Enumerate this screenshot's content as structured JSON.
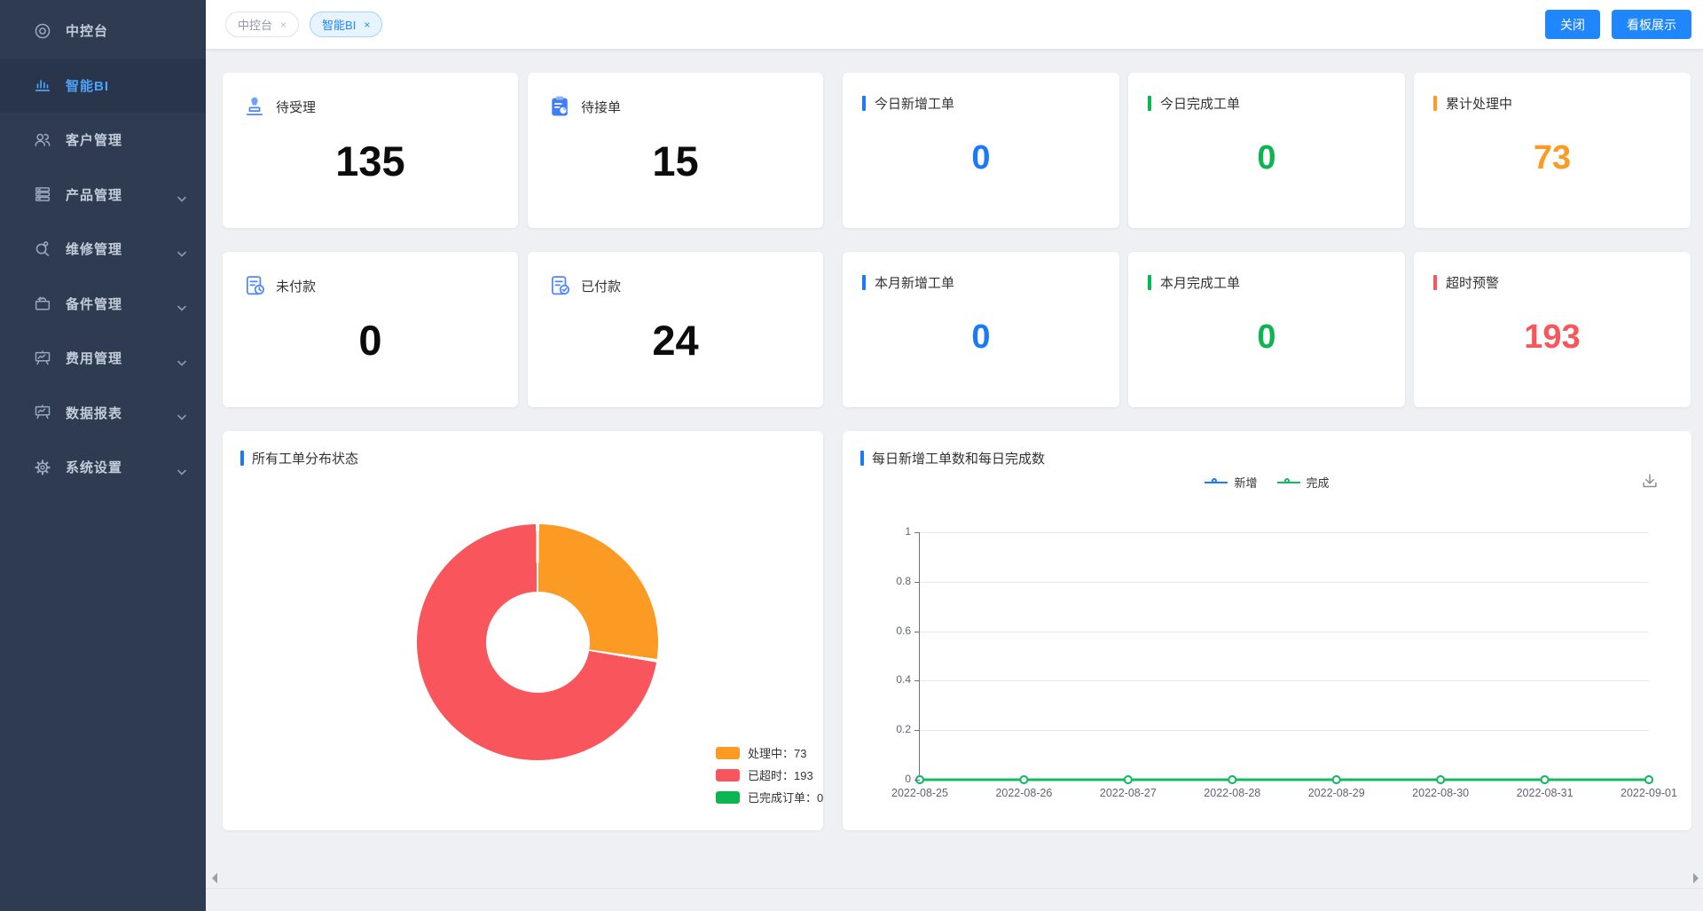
{
  "sidebar": {
    "items": [
      {
        "label": "中控台",
        "icon": "console-icon",
        "active": false,
        "has_children": false
      },
      {
        "label": "智能BI",
        "icon": "bi-chart-icon",
        "active": true,
        "has_children": false
      },
      {
        "label": "客户管理",
        "icon": "customers-icon",
        "active": false,
        "has_children": false
      },
      {
        "label": "产品管理",
        "icon": "products-icon",
        "active": false,
        "has_children": true
      },
      {
        "label": "维修管理",
        "icon": "repair-icon",
        "active": false,
        "has_children": true
      },
      {
        "label": "备件管理",
        "icon": "spare-parts-icon",
        "active": false,
        "has_children": true
      },
      {
        "label": "费用管理",
        "icon": "fees-icon",
        "active": false,
        "has_children": true
      },
      {
        "label": "数据报表",
        "icon": "reports-icon",
        "active": false,
        "has_children": true
      },
      {
        "label": "系统设置",
        "icon": "settings-icon",
        "active": false,
        "has_children": true
      }
    ]
  },
  "topbar": {
    "tabs": [
      {
        "label": "中控台",
        "close": "×",
        "active": false
      },
      {
        "label": "智能BI",
        "close": "×",
        "active": true
      }
    ],
    "buttons": {
      "close": "关闭",
      "board": "看板展示"
    }
  },
  "stats": {
    "row1": [
      {
        "title": "待受理",
        "value": "135",
        "icon": "stamp-icon"
      },
      {
        "title": "待接单",
        "value": "15",
        "icon": "clipboard-icon"
      },
      {
        "title": "今日新增工单",
        "value": "0",
        "accent": "#1a7af8"
      },
      {
        "title": "今日完成工单",
        "value": "0",
        "accent": "#0db551"
      },
      {
        "title": "累计处理中",
        "value": "73",
        "accent": "#fb9b23"
      }
    ],
    "row2": [
      {
        "title": "未付款",
        "value": "0",
        "icon": "doc-clock-icon"
      },
      {
        "title": "已付款",
        "value": "24",
        "icon": "doc-check-icon"
      },
      {
        "title": "本月新增工单",
        "value": "0",
        "accent": "#1a7af8"
      },
      {
        "title": "本月完成工单",
        "value": "0",
        "accent": "#0db551"
      },
      {
        "title": "超时预警",
        "value": "193",
        "accent": "#f8565c"
      }
    ]
  },
  "chart_data": [
    {
      "type": "pie",
      "title": "所有工单分布状态",
      "donut": true,
      "legend_position": "bottom-right",
      "series": [
        {
          "name": "处理中",
          "value": 73,
          "color": "#fb9b23"
        },
        {
          "name": "已超时",
          "value": 193,
          "color": "#f8565c"
        },
        {
          "name": "已完成订单",
          "value": 0,
          "color": "#0db551"
        }
      ]
    },
    {
      "type": "line",
      "title": "每日新增工单数和每日完成数",
      "legend_position": "top-center",
      "grid": true,
      "ylim": [
        0,
        1
      ],
      "yticks": [
        0,
        0.2,
        0.4,
        0.6,
        0.8,
        1
      ],
      "x": [
        "2022-08-25",
        "2022-08-26",
        "2022-08-27",
        "2022-08-28",
        "2022-08-29",
        "2022-08-30",
        "2022-08-31",
        "2022-09-01"
      ],
      "series": [
        {
          "name": "新增",
          "color": "#1a7af8",
          "values": [
            0,
            0,
            0,
            0,
            0,
            0,
            0,
            0
          ]
        },
        {
          "name": "完成",
          "color": "#13ba5e",
          "values": [
            0,
            0,
            0,
            0,
            0,
            0,
            0,
            0
          ]
        }
      ]
    }
  ],
  "theme": {
    "sidebar_bg": "#2e3b50",
    "active_blue": "#4da2f9",
    "button_blue": "#2086fb",
    "stat_blue": "#1a7af8",
    "stat_green": "#0db551",
    "stat_orange": "#fb9b23",
    "stat_red": "#f8565c"
  }
}
